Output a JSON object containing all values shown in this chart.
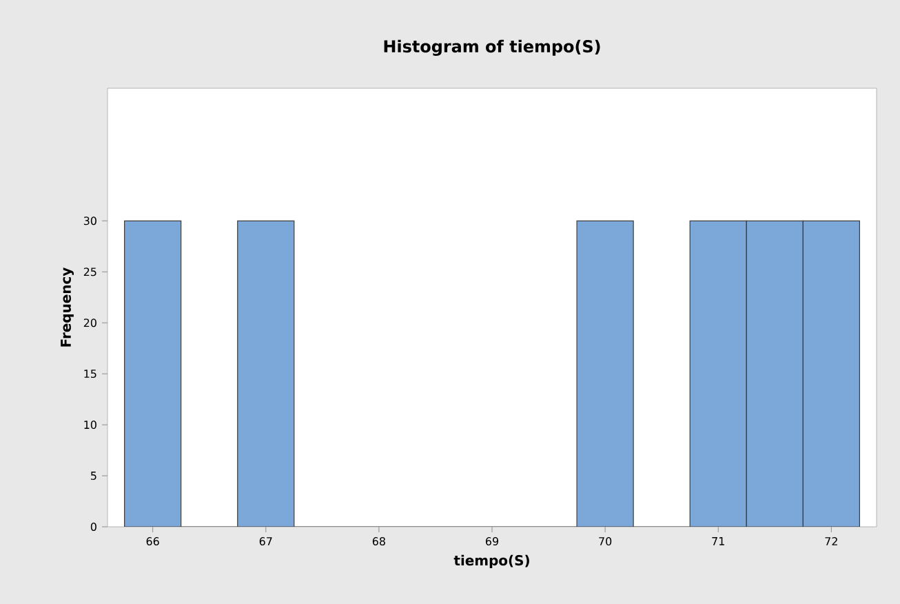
{
  "chart_data": {
    "type": "histogram",
    "title": "Histogram of tiempo(S)",
    "xlabel": "tiempo(S)",
    "ylabel": "Frequency",
    "bins": [
      65.75,
      66.25,
      66.75,
      67.25,
      67.75,
      68.25,
      68.75,
      69.25,
      69.75,
      70.25,
      70.75,
      71.25,
      71.75,
      72.25
    ],
    "values": [
      30,
      0,
      30,
      0,
      0,
      0,
      0,
      0,
      30,
      0,
      30,
      30,
      30
    ],
    "color": "#7ba7d9",
    "xlim": [
      65.6,
      72.4
    ],
    "ylim": [
      0,
      43
    ],
    "xticks": [
      66,
      67,
      68,
      69,
      70,
      71,
      72
    ],
    "yticks": [
      0,
      5,
      10,
      15,
      20,
      25,
      30
    ],
    "grid": false
  }
}
